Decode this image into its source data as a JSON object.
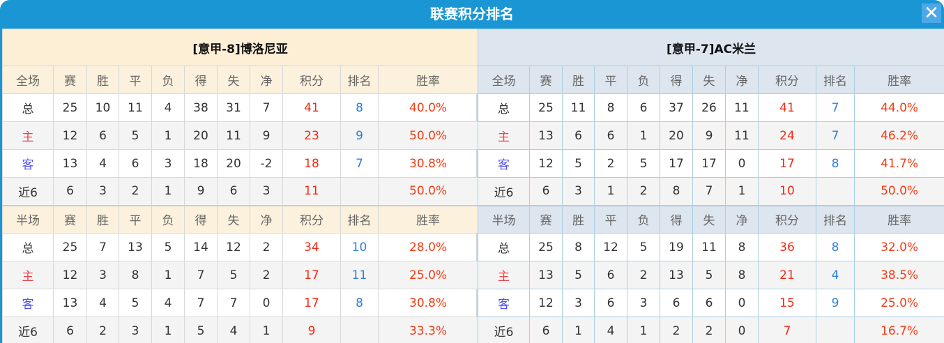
{
  "window": {
    "title": "联赛积分排名",
    "close_icon": "close-icon"
  },
  "colors": {
    "title_bar": "#1a96d4",
    "points": "#f42a14",
    "rank": "#2f7fd6",
    "win_rate": "#f43c14"
  },
  "columns_full": [
    "全场",
    "赛",
    "胜",
    "平",
    "负",
    "得",
    "失",
    "净",
    "积分",
    "排名",
    "胜率"
  ],
  "columns_half": [
    "半场",
    "赛",
    "胜",
    "平",
    "负",
    "得",
    "失",
    "净",
    "积分",
    "排名",
    "胜率"
  ],
  "teams": [
    {
      "title": "[意甲-8]博洛尼亚",
      "full": [
        [
          "总",
          "25",
          "10",
          "11",
          "4",
          "38",
          "31",
          "7",
          "41",
          "8",
          "40.0%"
        ],
        [
          "主",
          "12",
          "6",
          "5",
          "1",
          "20",
          "11",
          "9",
          "23",
          "9",
          "50.0%"
        ],
        [
          "客",
          "13",
          "4",
          "6",
          "3",
          "18",
          "20",
          "-2",
          "18",
          "7",
          "30.8%"
        ],
        [
          "近6",
          "6",
          "3",
          "2",
          "1",
          "9",
          "6",
          "3",
          "11",
          "",
          "50.0%"
        ]
      ],
      "half": [
        [
          "总",
          "25",
          "7",
          "13",
          "5",
          "14",
          "12",
          "2",
          "34",
          "10",
          "28.0%"
        ],
        [
          "主",
          "12",
          "3",
          "8",
          "1",
          "7",
          "5",
          "2",
          "17",
          "11",
          "25.0%"
        ],
        [
          "客",
          "13",
          "4",
          "5",
          "4",
          "7",
          "7",
          "0",
          "17",
          "8",
          "30.8%"
        ],
        [
          "近6",
          "6",
          "2",
          "3",
          "1",
          "5",
          "4",
          "1",
          "9",
          "",
          "33.3%"
        ]
      ]
    },
    {
      "title": "[意甲-7]AC米兰",
      "full": [
        [
          "总",
          "25",
          "11",
          "8",
          "6",
          "37",
          "26",
          "11",
          "41",
          "7",
          "44.0%"
        ],
        [
          "主",
          "13",
          "6",
          "6",
          "1",
          "20",
          "9",
          "11",
          "24",
          "7",
          "46.2%"
        ],
        [
          "客",
          "12",
          "5",
          "2",
          "5",
          "17",
          "17",
          "0",
          "17",
          "8",
          "41.7%"
        ],
        [
          "近6",
          "6",
          "3",
          "1",
          "2",
          "8",
          "7",
          "1",
          "10",
          "",
          "50.0%"
        ]
      ],
      "half": [
        [
          "总",
          "25",
          "8",
          "12",
          "5",
          "19",
          "11",
          "8",
          "36",
          "8",
          "32.0%"
        ],
        [
          "主",
          "13",
          "5",
          "6",
          "2",
          "13",
          "5",
          "8",
          "21",
          "4",
          "38.5%"
        ],
        [
          "客",
          "12",
          "3",
          "6",
          "3",
          "6",
          "6",
          "0",
          "15",
          "9",
          "25.0%"
        ],
        [
          "近6",
          "6",
          "1",
          "4",
          "1",
          "2",
          "2",
          "0",
          "7",
          "",
          "16.7%"
        ]
      ]
    }
  ]
}
